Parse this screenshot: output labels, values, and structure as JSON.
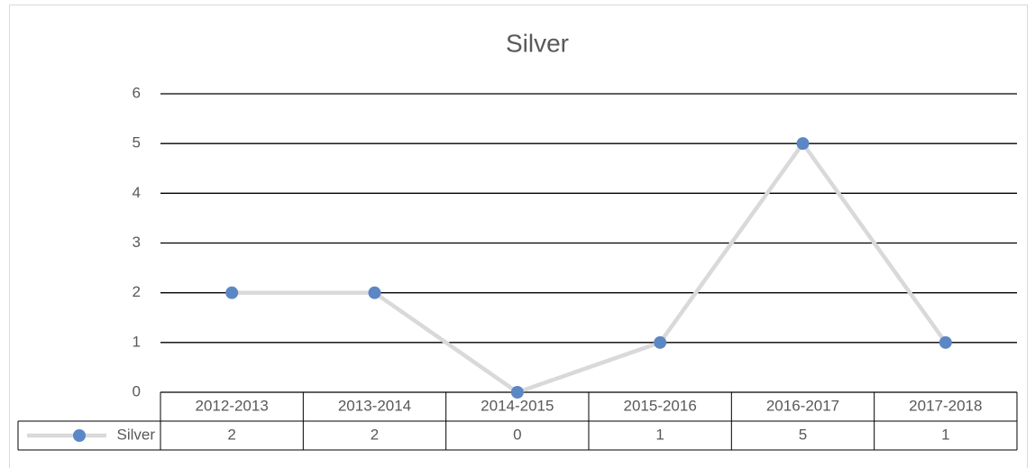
{
  "chart_data": {
    "type": "line",
    "title": "Silver",
    "categories": [
      "2012-2013",
      "2013-2014",
      "2014-2015",
      "2015-2016",
      "2016-2017",
      "2017-2018"
    ],
    "series": [
      {
        "name": "Silver",
        "line_color": "#d9d9d9",
        "color": "#5b87c5",
        "values": [
          2,
          2,
          0,
          1,
          5,
          1
        ]
      }
    ],
    "ylim": [
      0,
      6
    ],
    "yticks": [
      0,
      1,
      2,
      3,
      4,
      5,
      6
    ],
    "grid": true,
    "data_table": true
  }
}
